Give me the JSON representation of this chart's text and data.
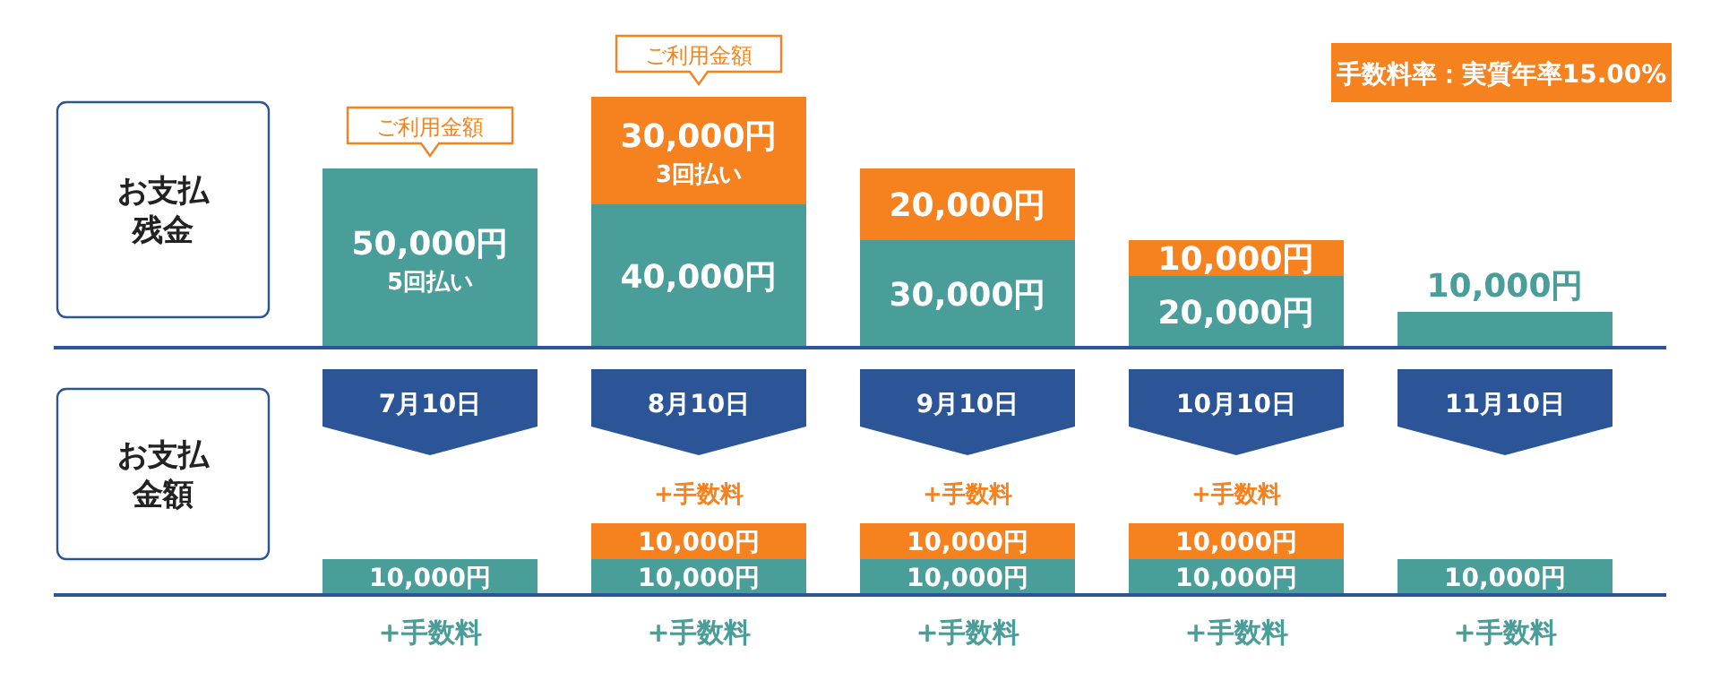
{
  "chart_data": [
    {
      "type": "bar",
      "stacked": true,
      "ylabel": "お支払残金",
      "tick_labels": false,
      "categories": [
        "7月10日",
        "8月10日",
        "9月10日",
        "10月10日",
        "11月10日"
      ],
      "series": [
        {
          "color": "#4a9e9a",
          "values": [
            50000,
            40000,
            30000,
            20000,
            10000
          ],
          "value_labels": [
            "50,000円\n5回払い",
            "40,000円",
            "30,000円",
            "20,000円",
            "10,000円"
          ]
        },
        {
          "color": "#f5821f",
          "values": [
            null,
            30000,
            20000,
            10000,
            null
          ],
          "value_labels": [
            null,
            "30,000円\n3回払い",
            "20,000円",
            "10,000円",
            null
          ]
        }
      ],
      "annotations": [
        "手数料率：実質年率15.00%",
        {
          "text": "ご利用金額",
          "x": "7月10日",
          "y": 50000
        },
        {
          "text": "ご利用金額",
          "x": "8月10日",
          "y": 70000
        }
      ]
    },
    {
      "type": "bar",
      "stacked": true,
      "ylabel": "お支払金額",
      "tick_labels": "x",
      "categories": [
        "7月10日",
        "8月10日",
        "9月10日",
        "10月10日",
        "11月10日"
      ],
      "series": [
        {
          "color": "#4a9e9a",
          "values": [
            10000,
            10000,
            10000,
            10000,
            10000
          ],
          "value_labels": [
            "10,000円",
            "10,000円",
            "10,000円",
            "10,000円",
            "10,000円"
          ]
        },
        {
          "color": "#f5821f",
          "values": [
            null,
            10000,
            10000,
            10000,
            null
          ],
          "value_labels": [
            null,
            "10,000円",
            "10,000円",
            "10,000円",
            null
          ]
        }
      ],
      "annotations": [
        {
          "text": "+手数料",
          "x": "8月10日",
          "y": 20000
        },
        {
          "text": "+手数料",
          "x": "9月10日",
          "y": 20000
        },
        {
          "text": "+手数料",
          "x": "10月10日",
          "y": 20000
        },
        {
          "text": "+手数料",
          "x": "7月10日",
          "y": 0
        },
        {
          "text": "+手数料",
          "x": "8月10日",
          "y": 0
        },
        {
          "text": "+手数料",
          "x": "9月10日",
          "y": 0
        },
        {
          "text": "+手数料",
          "x": "10月10日",
          "y": 0
        },
        {
          "text": "+手数料",
          "x": "11月10日",
          "y": 0
        }
      ]
    }
  ]
}
